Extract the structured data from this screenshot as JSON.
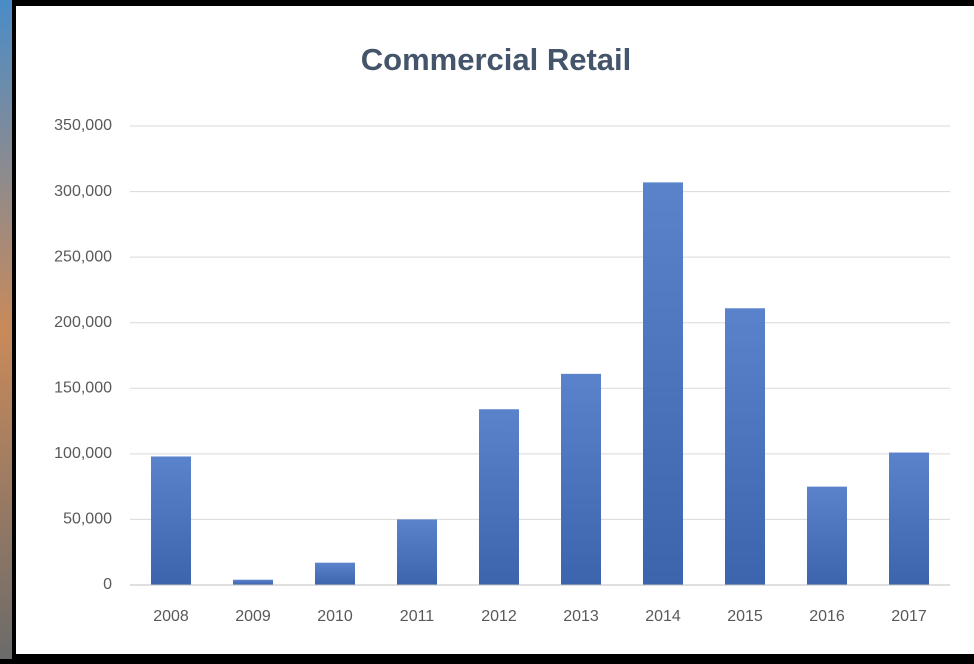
{
  "chart_data": {
    "type": "bar",
    "title": "Commercial Retail",
    "categories": [
      "2008",
      "2009",
      "2010",
      "2011",
      "2012",
      "2013",
      "2014",
      "2015",
      "2016",
      "2017"
    ],
    "values": [
      98000,
      4000,
      17000,
      50000,
      134000,
      161000,
      307000,
      211000,
      75000,
      101000
    ],
    "color": "#4472c4",
    "ylim": [
      0,
      350000
    ],
    "yticks": [
      0,
      {
        "value": 50000,
        "label": "50,000"
      },
      {
        "value": 100000,
        "label": "100,000"
      },
      {
        "value": 150000,
        "label": "150,000"
      },
      {
        "value": 200000,
        "label": "200,000"
      },
      {
        "value": 250000,
        "label": "250,000"
      },
      {
        "value": 300000,
        "label": "300,000"
      },
      {
        "value": 350000,
        "label": "350,000"
      }
    ],
    "grid": true
  }
}
